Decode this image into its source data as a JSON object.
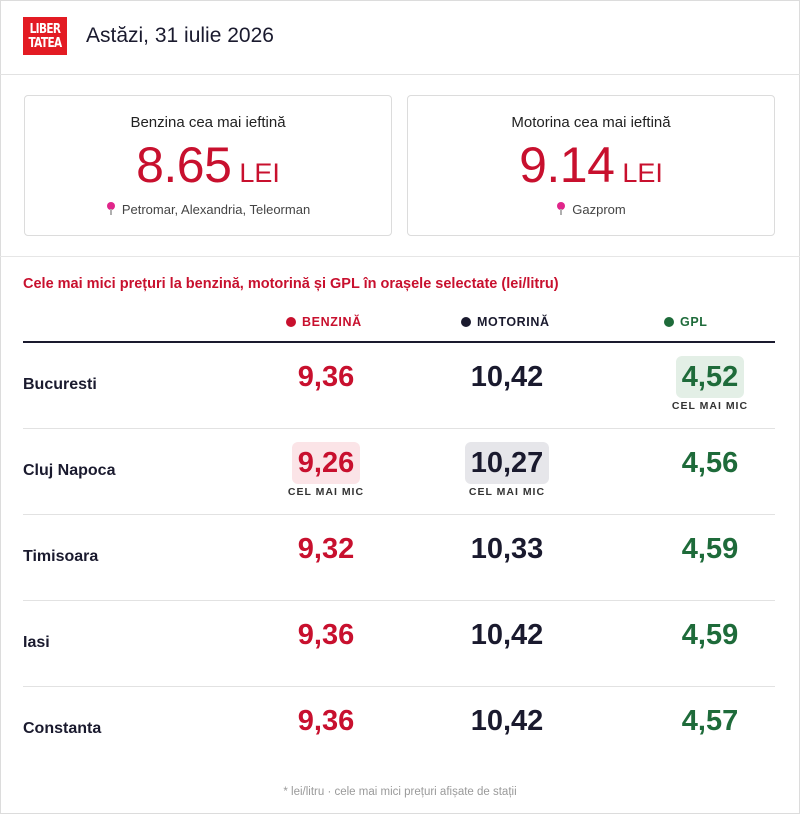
{
  "header": {
    "logo_line1": "LIBER",
    "logo_line2": "TATEA",
    "date": "Astăzi, 31 iulie 2026"
  },
  "cards": {
    "benzina": {
      "title": "Benzina cea mai ieftină",
      "price": "8.65",
      "currency": "LEI",
      "location": "Petromar, Alexandria, Teleorman"
    },
    "motorina": {
      "title": "Motorina cea mai ieftină",
      "price": "9.14",
      "currency": "LEI",
      "location": "Gazprom"
    }
  },
  "table": {
    "title": "Cele mai mici prețuri la benzină, motorină și GPL în orașele selectate (lei/litru)",
    "headers": {
      "benzina": "BENZINĂ",
      "motorina": "MOTORINĂ",
      "gpl": "GPL"
    },
    "lowest_label": "CEL MAI MIC",
    "rows": [
      {
        "city": "Bucuresti",
        "benzina": "9,36",
        "motorina": "10,42",
        "gpl": "4,52",
        "lowest": "gpl"
      },
      {
        "city": "Cluj Napoca",
        "benzina": "9,26",
        "motorina": "10,27",
        "gpl": "4,56",
        "lowest": "benzina,motorina"
      },
      {
        "city": "Timisoara",
        "benzina": "9,32",
        "motorina": "10,33",
        "gpl": "4,59",
        "lowest": ""
      },
      {
        "city": "Iasi",
        "benzina": "9,36",
        "motorina": "10,42",
        "gpl": "4,59",
        "lowest": ""
      },
      {
        "city": "Constanta",
        "benzina": "9,36",
        "motorina": "10,42",
        "gpl": "4,57",
        "lowest": ""
      }
    ]
  },
  "footnote": "* lei/litru · cele mai mici prețuri afișate de stații",
  "colors": {
    "benzina": "#c8102e",
    "motorina": "#1a1a2e",
    "gpl": "#1e6b3a",
    "brand": "#e31b23"
  },
  "icons": {
    "location": "map-pin-icon",
    "logo": "libertatea-logo"
  }
}
